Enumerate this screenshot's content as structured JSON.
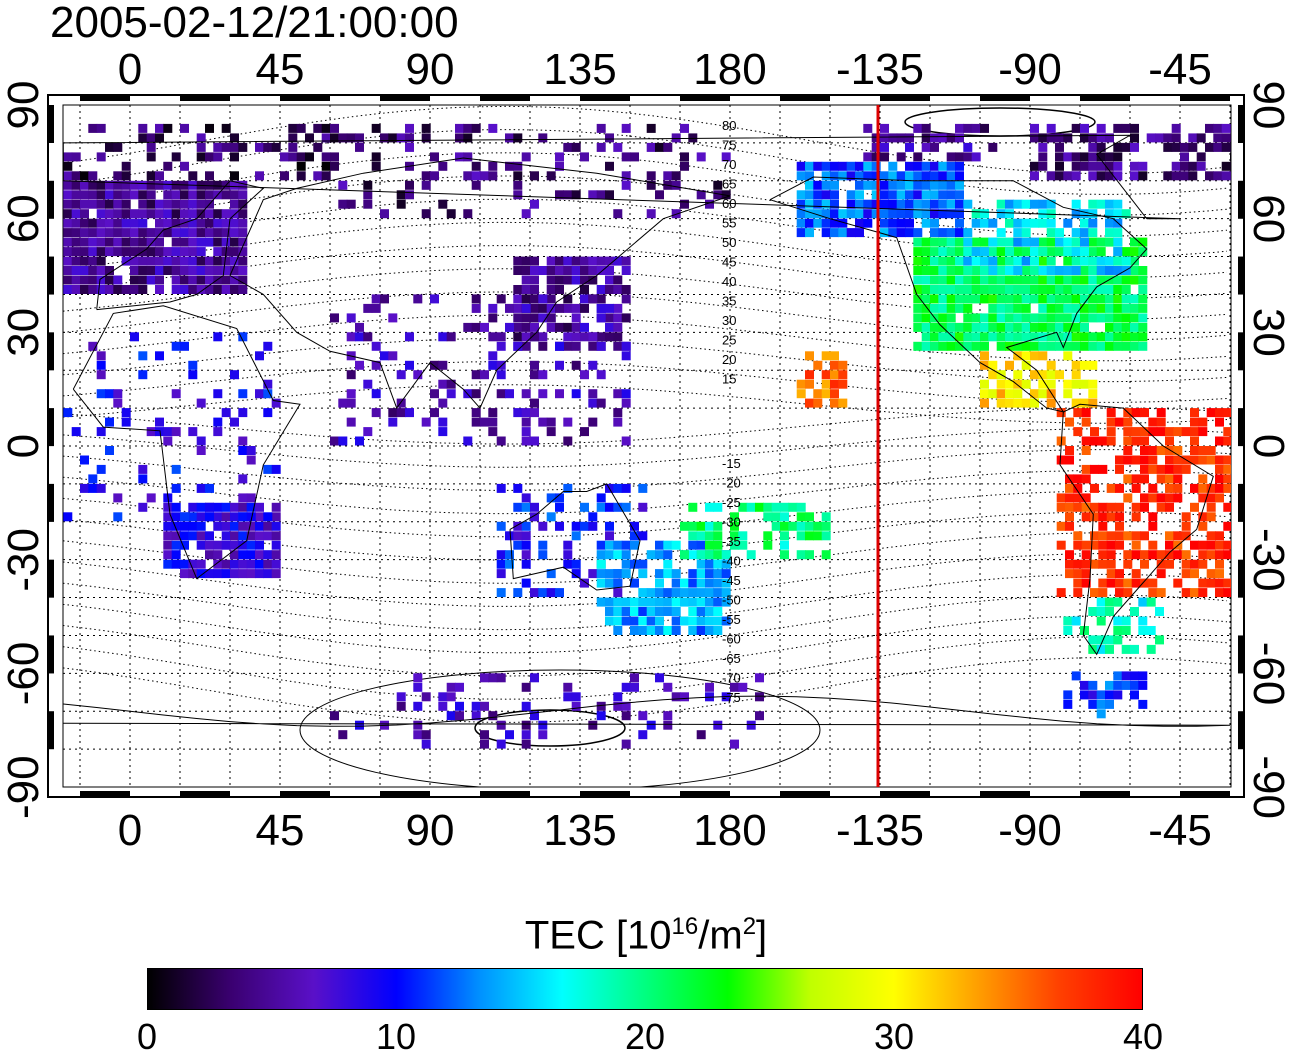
{
  "timestamp": "2005-02-12/21:00:00",
  "map": {
    "top_lon_labels": [
      "0",
      "45",
      "90",
      "135",
      "180",
      "-135",
      "-90",
      "-45"
    ],
    "bottom_lon_labels": [
      "0",
      "45",
      "90",
      "135",
      "180",
      "-135",
      "-90",
      "-45"
    ],
    "left_lat_labels": [
      "90",
      "60",
      "30",
      "0",
      "-30",
      "-60",
      "-90"
    ],
    "right_lat_labels": [
      "90",
      "60",
      "30",
      "0",
      "-30",
      "-60",
      "-90"
    ],
    "mlat_labels_north": [
      "80",
      "75",
      "70",
      "65",
      "60",
      "55",
      "50",
      "45",
      "40",
      "35",
      "30",
      "25",
      "20",
      "15"
    ],
    "mlat_labels_south": [
      "-15",
      "-20",
      "-25",
      "-30",
      "-35",
      "-40",
      "-45",
      "-50",
      "-55",
      "-60",
      "-65",
      "-70",
      "-75"
    ],
    "terminator_longitude": -135,
    "terminator_color": "#dd0000"
  },
  "colorbar": {
    "title_text": "TEC  [10",
    "title_exp1": "16",
    "title_mid": "/m",
    "title_exp2": "2",
    "title_end": "]",
    "ticks": [
      "0",
      "10",
      "20",
      "30",
      "40"
    ],
    "min": 0,
    "max": 40,
    "colors": [
      "#000000",
      "#3a0070",
      "#5a10c8",
      "#0000ff",
      "#0090ff",
      "#00ffff",
      "#00ff80",
      "#00ff00",
      "#c0ff00",
      "#ffff00",
      "#ffa000",
      "#ff4000",
      "#ff0000"
    ]
  }
}
